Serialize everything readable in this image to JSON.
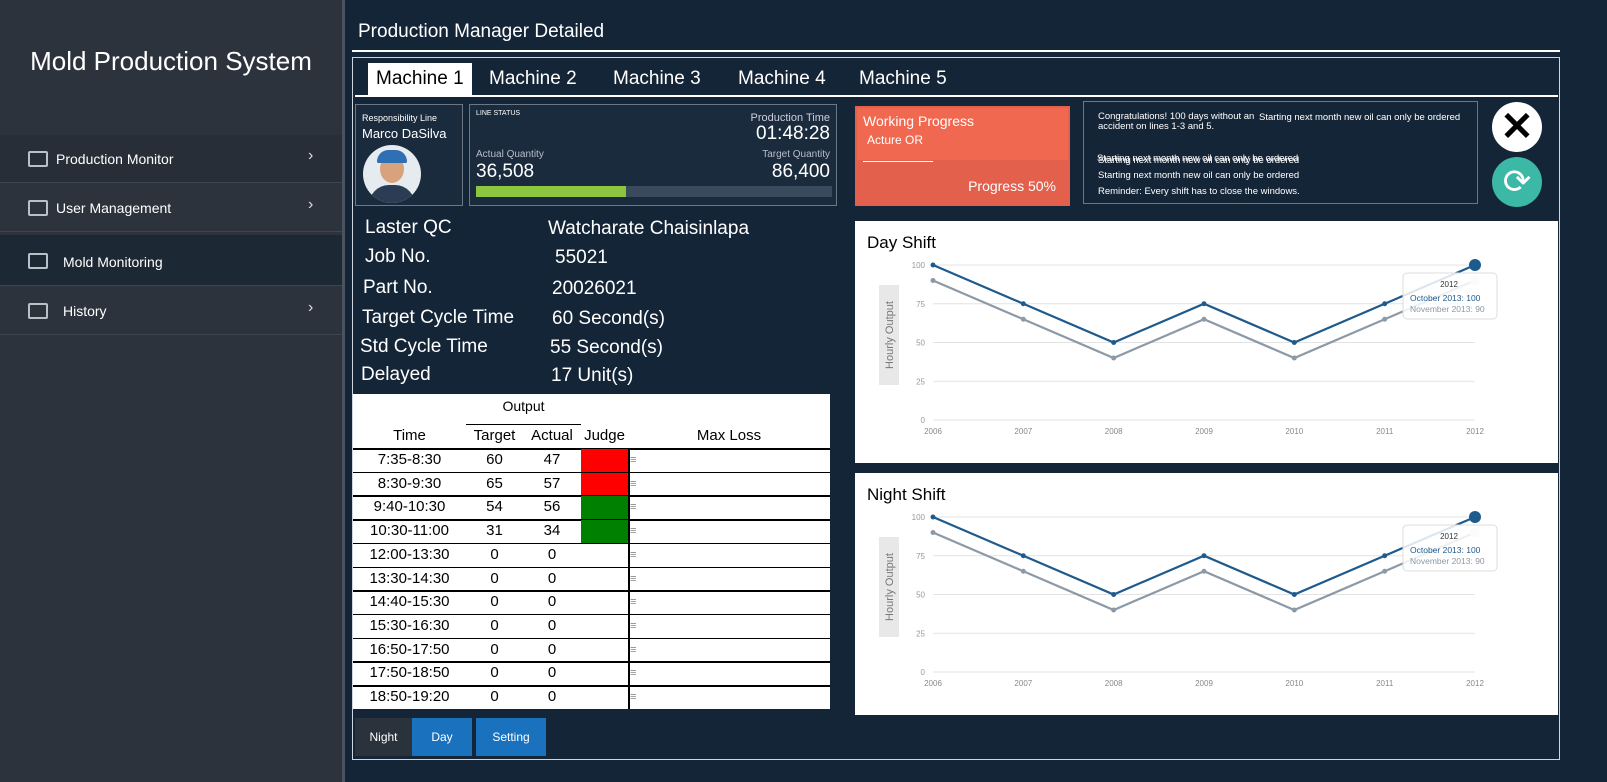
{
  "sidebar": {
    "title": "Mold Production System",
    "menu": [
      "Production Monitor",
      "User Management",
      "Mold Monitoring",
      "History"
    ]
  },
  "header": {
    "title": "Production Manager Detailed"
  },
  "tabs": [
    "Machine 1",
    "Machine 2",
    "Machine 3",
    "Machine 4",
    "Machine 5"
  ],
  "responsibility": {
    "label": "Responsibility Line",
    "name": "Marco DaSilva"
  },
  "line_status": {
    "label": "LINE STATUS",
    "production_time_label": "Production Time",
    "production_time": "01:48:28",
    "actual_label": "Actual Quantity",
    "actual_quantity": {
      "value": 36508,
      "label": "36,508"
    },
    "target_label": "Target Quantity",
    "target_quantity": {
      "value": 86400,
      "label": "86,400"
    }
  },
  "working_progress": {
    "title": "Working Progress",
    "subtitle": "Acture OR",
    "progress": "Progress 50%"
  },
  "notices": [
    "Congratulations! 100 days without an accident on lines 1-3 and 5.",
    "Starting next month new oil can only be ordered",
    "Starting next month new oil can only be ordered",
    "Starting next month new oil can only be ordered",
    "Starting next month new oil can only be ordered",
    "Reminder: Every shift has to close the windows."
  ],
  "details": [
    {
      "label": "Laster QC",
      "value": "Watcharate Chaisinlapa"
    },
    {
      "label": "Job No.",
      "value": "55021"
    },
    {
      "label": "Part No.",
      "value": "20026021"
    },
    {
      "label": "Target Cycle Time",
      "value": "60 Second(s)"
    },
    {
      "label": "Std Cycle Time",
      "value": "55 Second(s)"
    },
    {
      "label": "Delayed",
      "value": "17  Unit(s)"
    }
  ],
  "output_table": {
    "group_header": "Output",
    "columns": [
      "Time",
      "Target",
      "Actual",
      "Judge",
      "Max Loss"
    ],
    "rows": [
      {
        "time": "7:35-8:30",
        "target": 60,
        "actual": 47,
        "judge": "#ff0000"
      },
      {
        "time": "8:30-9:30",
        "target": 65,
        "actual": 57,
        "judge": "#ff0000"
      },
      {
        "time": "9:40-10:30",
        "target": 54,
        "actual": 56,
        "judge": "#008000"
      },
      {
        "time": "10:30-11:00",
        "target": 31,
        "actual": 34,
        "judge": "#008000"
      },
      {
        "time": "12:00-13:30",
        "target": 0,
        "actual": 0,
        "judge": null
      },
      {
        "time": "13:30-14:30",
        "target": 0,
        "actual": 0,
        "judge": null
      },
      {
        "time": "14:40-15:30",
        "target": 0,
        "actual": 0,
        "judge": null
      },
      {
        "time": "15:30-16:30",
        "target": 0,
        "actual": 0,
        "judge": null
      },
      {
        "time": "16:50-17:50",
        "target": 0,
        "actual": 0,
        "judge": null
      },
      {
        "time": "17:50-18:50",
        "target": 0,
        "actual": 0,
        "judge": null
      },
      {
        "time": "18:50-19:20",
        "target": 0,
        "actual": 0,
        "judge": null
      }
    ]
  },
  "buttons": [
    "Night",
    "Day",
    "Setting"
  ],
  "day_chart": {
    "type": "line",
    "title": "Day Shift",
    "y_label": "Hourly Output",
    "categories": [
      "2006",
      "2007",
      "2008",
      "2009",
      "2010",
      "2011",
      "2012"
    ],
    "series": [
      {
        "color": "#1f5a8c",
        "values": [
          100,
          75,
          50,
          75,
          50,
          75,
          100
        ]
      },
      {
        "color": "#8c99a6",
        "values": [
          90,
          65,
          40,
          65,
          40,
          65,
          90
        ]
      }
    ],
    "ylim": [
      0,
      100
    ],
    "yticks": [
      0,
      25,
      50,
      75,
      100
    ],
    "grid": true,
    "tooltip": {
      "title": "2012",
      "lines": [
        "October 2013: 100",
        "November 2013: 90"
      ]
    }
  },
  "night_chart": {
    "type": "line",
    "title": "Night Shift",
    "y_label": "Hourly Output",
    "categories": [
      "2006",
      "2007",
      "2008",
      "2009",
      "2010",
      "2011",
      "2012"
    ],
    "series": [
      {
        "color": "#1f5a8c",
        "values": [
          100,
          75,
          50,
          75,
          50,
          75,
          100
        ]
      },
      {
        "color": "#8c99a6",
        "values": [
          90,
          65,
          40,
          65,
          40,
          65,
          90
        ]
      }
    ],
    "ylim": [
      0,
      100
    ],
    "yticks": [
      0,
      25,
      50,
      75,
      100
    ],
    "grid": true,
    "tooltip": {
      "title": "2012",
      "lines": [
        "October 2013: 100",
        "November 2013: 90"
      ]
    }
  }
}
